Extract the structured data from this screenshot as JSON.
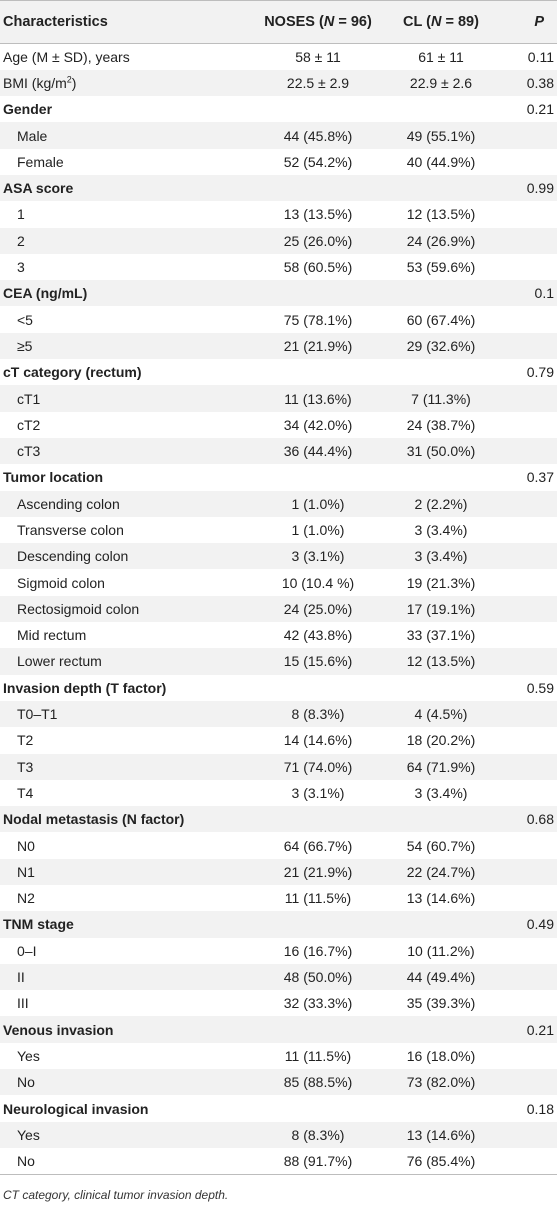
{
  "header": {
    "characteristics": "Characteristics",
    "noses": "NOSES (N = 96)",
    "cl": "CL (N = 89)",
    "p": "P"
  },
  "rows": [
    {
      "label": "Age (M ± SD), years",
      "noses": "58 ± 11",
      "cl": "61 ± 11",
      "p": "0.11",
      "kind": "plain"
    },
    {
      "label": "BMI (kg/m²)",
      "noses": "22.5 ± 2.9",
      "cl": "22.9 ± 2.6",
      "p": "0.38",
      "kind": "plain"
    },
    {
      "label": "Gender",
      "noses": "",
      "cl": "",
      "p": "0.21",
      "kind": "section"
    },
    {
      "label": "Male",
      "noses": "44 (45.8%)",
      "cl": "49 (55.1%)",
      "p": "",
      "kind": "sub"
    },
    {
      "label": "Female",
      "noses": "52 (54.2%)",
      "cl": "40 (44.9%)",
      "p": "",
      "kind": "sub"
    },
    {
      "label": "ASA score",
      "noses": "",
      "cl": "",
      "p": "0.99",
      "kind": "section"
    },
    {
      "label": "1",
      "noses": "13 (13.5%)",
      "cl": "12 (13.5%)",
      "p": "",
      "kind": "sub"
    },
    {
      "label": "2",
      "noses": "25 (26.0%)",
      "cl": "24 (26.9%)",
      "p": "",
      "kind": "sub"
    },
    {
      "label": "3",
      "noses": "58 (60.5%)",
      "cl": "53 (59.6%)",
      "p": "",
      "kind": "sub"
    },
    {
      "label": "CEA (ng/mL)",
      "noses": "",
      "cl": "",
      "p": "0.1",
      "kind": "section"
    },
    {
      "label": "<5",
      "noses": "75 (78.1%)",
      "cl": "60 (67.4%)",
      "p": "",
      "kind": "sub"
    },
    {
      "label": "≥5",
      "noses": "21 (21.9%)",
      "cl": "29 (32.6%)",
      "p": "",
      "kind": "sub"
    },
    {
      "label": "cT category (rectum)",
      "noses": "",
      "cl": "",
      "p": "0.79",
      "kind": "section"
    },
    {
      "label": "cT1",
      "noses": "11 (13.6%)",
      "cl": "7 (11.3%)",
      "p": "",
      "kind": "sub"
    },
    {
      "label": "cT2",
      "noses": "34 (42.0%)",
      "cl": "24 (38.7%)",
      "p": "",
      "kind": "sub"
    },
    {
      "label": "cT3",
      "noses": "36 (44.4%)",
      "cl": "31 (50.0%)",
      "p": "",
      "kind": "sub"
    },
    {
      "label": "Tumor location",
      "noses": "",
      "cl": "",
      "p": "0.37",
      "kind": "section"
    },
    {
      "label": "Ascending colon",
      "noses": "1 (1.0%)",
      "cl": "2 (2.2%)",
      "p": "",
      "kind": "sub"
    },
    {
      "label": "Transverse colon",
      "noses": "1 (1.0%)",
      "cl": "3 (3.4%)",
      "p": "",
      "kind": "sub"
    },
    {
      "label": "Descending colon",
      "noses": "3 (3.1%)",
      "cl": "3 (3.4%)",
      "p": "",
      "kind": "sub"
    },
    {
      "label": "Sigmoid colon",
      "noses": "10 (10.4 %)",
      "cl": "19 (21.3%)",
      "p": "",
      "kind": "sub"
    },
    {
      "label": "Rectosigmoid colon",
      "noses": "24 (25.0%)",
      "cl": "17 (19.1%)",
      "p": "",
      "kind": "sub"
    },
    {
      "label": "Mid rectum",
      "noses": "42 (43.8%)",
      "cl": "33 (37.1%)",
      "p": "",
      "kind": "sub"
    },
    {
      "label": "Lower rectum",
      "noses": "15 (15.6%)",
      "cl": "12 (13.5%)",
      "p": "",
      "kind": "sub"
    },
    {
      "label": "Invasion depth (T factor)",
      "noses": "",
      "cl": "",
      "p": "0.59",
      "kind": "section"
    },
    {
      "label": "T0–T1",
      "noses": "8 (8.3%)",
      "cl": "4 (4.5%)",
      "p": "",
      "kind": "sub"
    },
    {
      "label": "T2",
      "noses": "14 (14.6%)",
      "cl": "18 (20.2%)",
      "p": "",
      "kind": "sub"
    },
    {
      "label": "T3",
      "noses": "71 (74.0%)",
      "cl": "64 (71.9%)",
      "p": "",
      "kind": "sub"
    },
    {
      "label": "T4",
      "noses": "3 (3.1%)",
      "cl": "3 (3.4%)",
      "p": "",
      "kind": "sub"
    },
    {
      "label": "Nodal metastasis (N factor)",
      "noses": "",
      "cl": "",
      "p": "0.68",
      "kind": "section"
    },
    {
      "label": "N0",
      "noses": "64 (66.7%)",
      "cl": "54 (60.7%)",
      "p": "",
      "kind": "sub"
    },
    {
      "label": "N1",
      "noses": "21 (21.9%)",
      "cl": "22 (24.7%)",
      "p": "",
      "kind": "sub"
    },
    {
      "label": "N2",
      "noses": "11 (11.5%)",
      "cl": "13 (14.6%)",
      "p": "",
      "kind": "sub"
    },
    {
      "label": "TNM stage",
      "noses": "",
      "cl": "",
      "p": "0.49",
      "kind": "section"
    },
    {
      "label": "0–I",
      "noses": "16 (16.7%)",
      "cl": "10 (11.2%)",
      "p": "",
      "kind": "sub"
    },
    {
      "label": "II",
      "noses": "48 (50.0%)",
      "cl": "44 (49.4%)",
      "p": "",
      "kind": "sub"
    },
    {
      "label": "III",
      "noses": "32 (33.3%)",
      "cl": "35 (39.3%)",
      "p": "",
      "kind": "sub"
    },
    {
      "label": "Venous invasion",
      "noses": "",
      "cl": "",
      "p": "0.21",
      "kind": "section"
    },
    {
      "label": "Yes",
      "noses": "11 (11.5%)",
      "cl": "16 (18.0%)",
      "p": "",
      "kind": "sub"
    },
    {
      "label": "No",
      "noses": "85 (88.5%)",
      "cl": "73 (82.0%)",
      "p": "",
      "kind": "sub"
    },
    {
      "label": "Neurological invasion",
      "noses": "",
      "cl": "",
      "p": "0.18",
      "kind": "section"
    },
    {
      "label": "Yes",
      "noses": "8 (8.3%)",
      "cl": "13 (14.6%)",
      "p": "",
      "kind": "sub"
    },
    {
      "label": "No",
      "noses": "88 (91.7%)",
      "cl": "76 (85.4%)",
      "p": "",
      "kind": "sub"
    }
  ],
  "footnote": "CT category, clinical tumor invasion depth."
}
